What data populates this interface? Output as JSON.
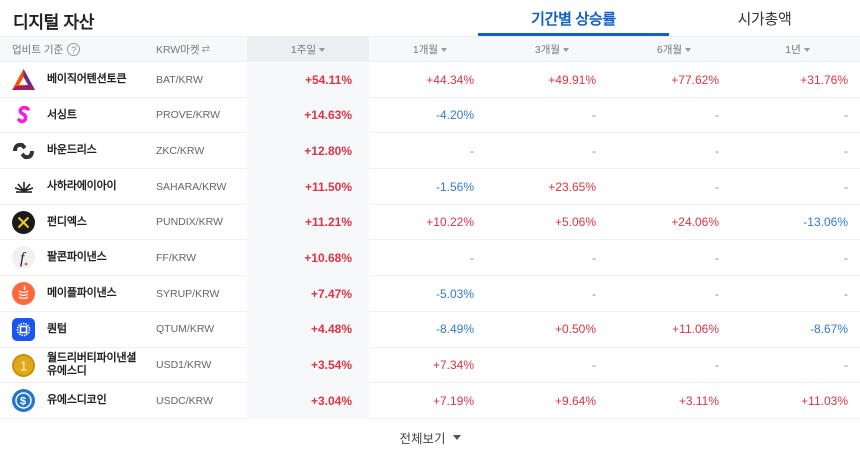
{
  "page": {
    "title": "디지털 자산",
    "tabs": [
      {
        "label": "기간별 상승률",
        "active": true
      },
      {
        "label": "시가총액",
        "active": false
      }
    ]
  },
  "header": {
    "basis_label": "업비트 기준",
    "help_icon": "?",
    "market_label": "KRW마켓",
    "market_icon": "⇄",
    "columns": [
      {
        "label": "1주일",
        "sorted": true
      },
      {
        "label": "1개월",
        "sorted": false
      },
      {
        "label": "3개월",
        "sorted": false
      },
      {
        "label": "6개월",
        "sorted": false
      },
      {
        "label": "1년",
        "sorted": false
      }
    ]
  },
  "colors": {
    "accent": "#1261c4",
    "up": "#dc3545",
    "down": "#2f7bd0",
    "header_bg": "#f7f8fa"
  },
  "rows": [
    {
      "name": "베이직어텐션토큰",
      "pair": "BAT/KRW",
      "icon": "bat-icon",
      "w1": "+54.11%",
      "m1": "+44.34%",
      "m3": "+49.91%",
      "m6": "+77.62%",
      "y1": "+31.76%"
    },
    {
      "name": "서싱트",
      "pair": "PROVE/KRW",
      "icon": "prove-icon",
      "w1": "+14.63%",
      "m1": "-4.20%",
      "m3": "-",
      "m6": "-",
      "y1": "-"
    },
    {
      "name": "바운드리스",
      "pair": "ZKC/KRW",
      "icon": "zkc-icon",
      "w1": "+12.80%",
      "m1": "-",
      "m3": "-",
      "m6": "-",
      "y1": "-"
    },
    {
      "name": "사하라에이아이",
      "pair": "SAHARA/KRW",
      "icon": "sahara-icon",
      "w1": "+11.50%",
      "m1": "-1.56%",
      "m3": "+23.65%",
      "m6": "-",
      "y1": "-"
    },
    {
      "name": "펀디엑스",
      "pair": "PUNDIX/KRW",
      "icon": "pundix-icon",
      "w1": "+11.21%",
      "m1": "+10.22%",
      "m3": "+5.06%",
      "m6": "+24.06%",
      "y1": "-13.06%"
    },
    {
      "name": "팔콘파이낸스",
      "pair": "FF/KRW",
      "icon": "ff-icon",
      "w1": "+10.68%",
      "m1": "-",
      "m3": "-",
      "m6": "-",
      "y1": "-"
    },
    {
      "name": "메이플파이낸스",
      "pair": "SYRUP/KRW",
      "icon": "syrup-icon",
      "w1": "+7.47%",
      "m1": "-5.03%",
      "m3": "-",
      "m6": "-",
      "y1": "-"
    },
    {
      "name": "퀀텀",
      "pair": "QTUM/KRW",
      "icon": "qtum-icon",
      "w1": "+4.48%",
      "m1": "-8.49%",
      "m3": "+0.50%",
      "m6": "+11.06%",
      "y1": "-8.67%"
    },
    {
      "name": "월드리버티파이낸셜유에스디",
      "pair": "USD1/KRW",
      "icon": "usd1-icon",
      "w1": "+3.54%",
      "m1": "+7.34%",
      "m3": "-",
      "m6": "-",
      "y1": "-"
    },
    {
      "name": "유에스디코인",
      "pair": "USDC/KRW",
      "icon": "usdc-icon",
      "w1": "+3.04%",
      "m1": "+7.19%",
      "m3": "+9.64%",
      "m6": "+3.11%",
      "y1": "+11.03%"
    }
  ],
  "footer": {
    "view_all_label": "전체보기"
  }
}
